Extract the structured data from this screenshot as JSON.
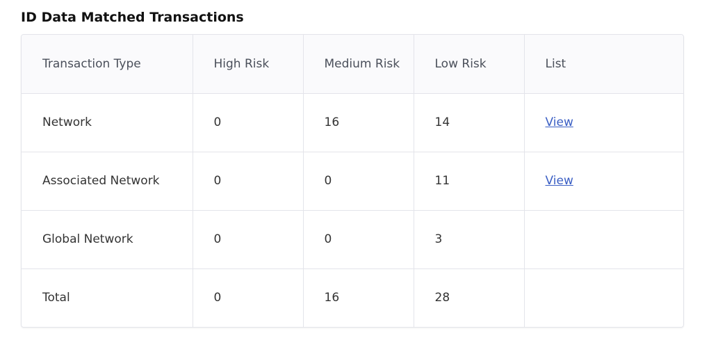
{
  "title": "ID Data Matched Transactions",
  "table": {
    "headers": [
      "Transaction Type",
      "High Risk",
      "Medium Risk",
      "Low Risk",
      "List"
    ],
    "rows": [
      [
        "Network",
        "0",
        "16",
        "14",
        "View"
      ],
      [
        "Associated Network",
        "0",
        "0",
        "11",
        "View"
      ],
      [
        "Global Network",
        "0",
        "0",
        "3",
        null
      ],
      [
        "Total",
        "0",
        "16",
        "28",
        null
      ]
    ]
  }
}
